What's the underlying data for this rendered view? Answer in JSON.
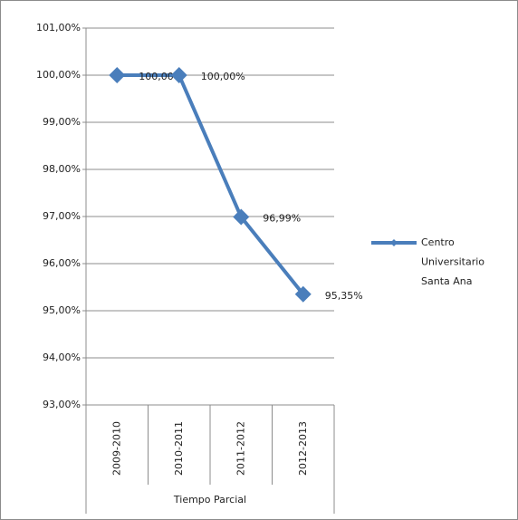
{
  "chart_data": {
    "type": "line",
    "categories": [
      "2009-2010",
      "2010-2011",
      "2011-2012",
      "2012-2013"
    ],
    "x_group_label": "Tiempo Parcial",
    "series": [
      {
        "name": "Centro Universitario Santa Ana",
        "color": "#4a7ebb",
        "values": [
          100,
          100,
          96.99,
          95.35
        ],
        "value_labels": [
          "100,00%",
          "100,00%",
          "96,99%",
          "95,35%"
        ]
      }
    ],
    "ylim": [
      93,
      101
    ],
    "yticks": [
      {
        "value": 93,
        "label": "93,00%"
      },
      {
        "value": 94,
        "label": "94,00%"
      },
      {
        "value": 95,
        "label": "95,00%"
      },
      {
        "value": 96,
        "label": "96,00%"
      },
      {
        "value": 97,
        "label": "97,00%"
      },
      {
        "value": 98,
        "label": "98,00%"
      },
      {
        "value": 99,
        "label": "99,00%"
      },
      {
        "value": 100,
        "label": "100,00%"
      },
      {
        "value": 101,
        "label": "101,00%"
      }
    ],
    "grid": true,
    "legend": "right"
  }
}
